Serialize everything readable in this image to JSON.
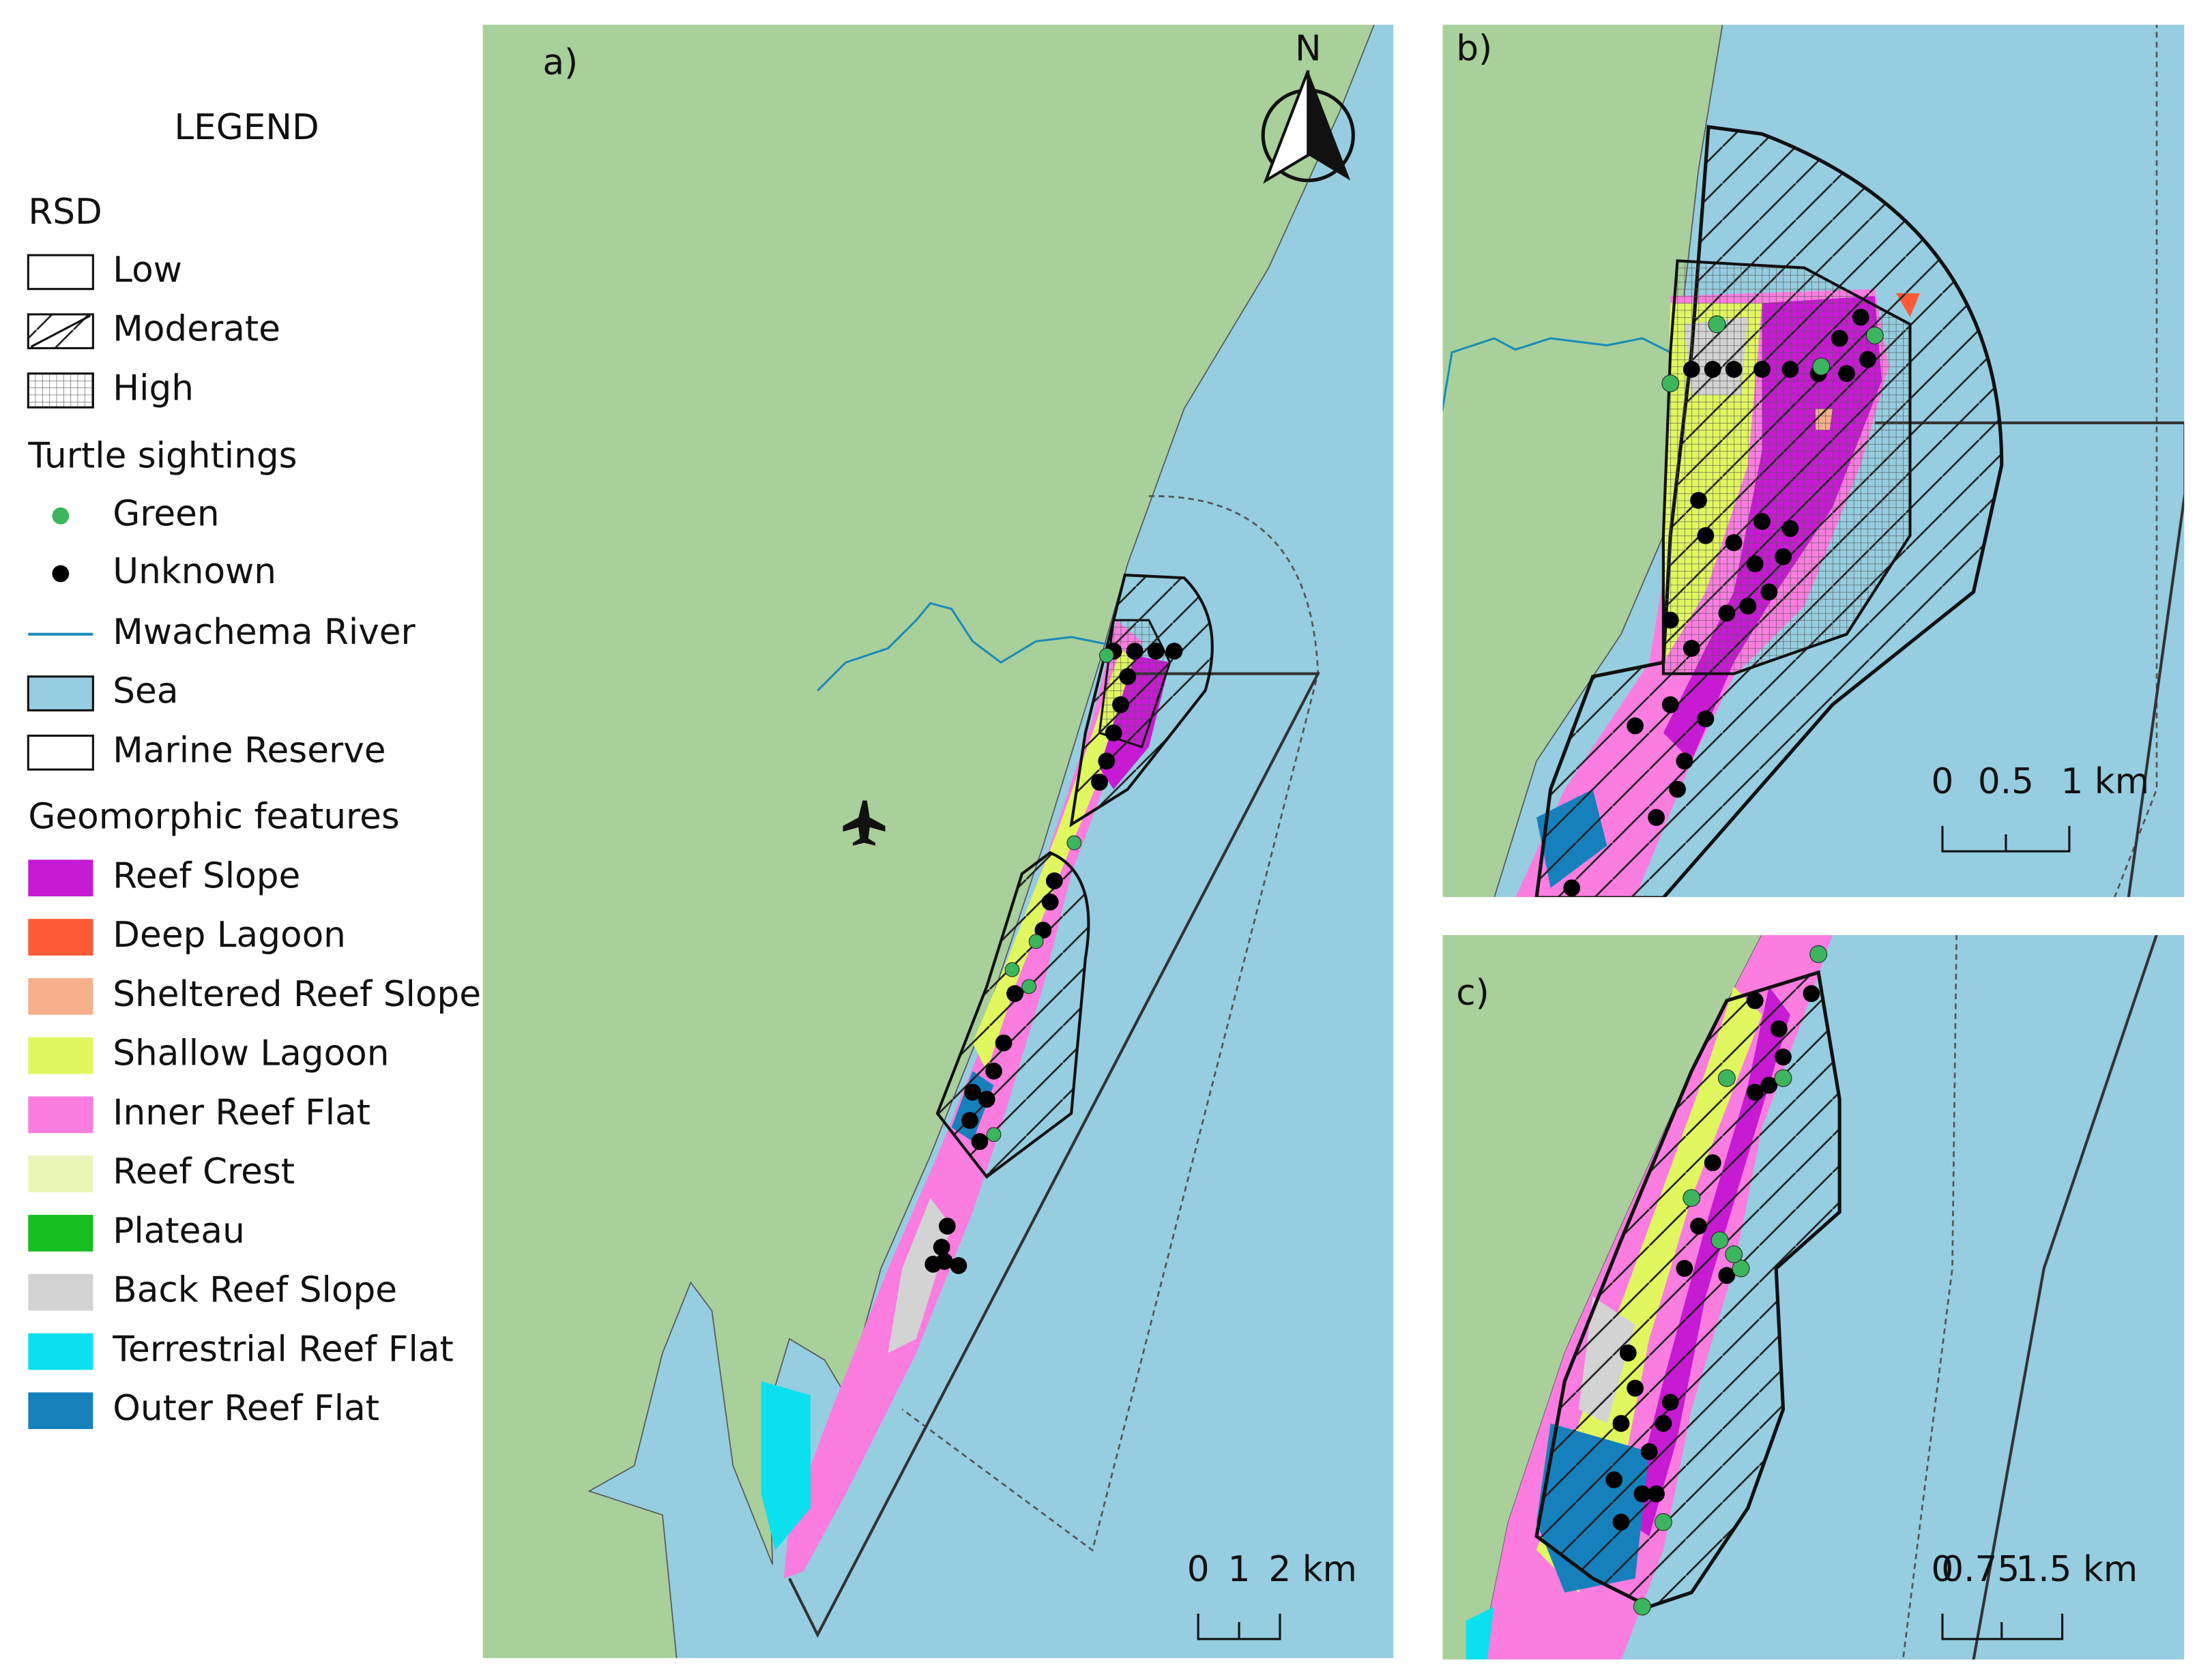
{
  "legend": {
    "title": "LEGEND",
    "rsd": {
      "heading": "RSD",
      "items": [
        "Low",
        "Moderate",
        "High"
      ]
    },
    "turtle_sightings": {
      "heading": "Turtle sightings",
      "items": [
        {
          "label": "Green",
          "color": "#3cb55e"
        },
        {
          "label": "Unknown",
          "color": "#000000"
        }
      ]
    },
    "layers": [
      "Mwachema River",
      "Sea",
      "Marine Reserve"
    ],
    "geomorphic_features": {
      "heading": "Geomorphic features",
      "items": [
        {
          "label": "Reef Slope",
          "color": "#c71ad3"
        },
        {
          "label": "Deep Lagoon",
          "color": "#ff5a36"
        },
        {
          "label": "Sheltered Reef Slope",
          "color": "#f8b08c"
        },
        {
          "label": "Shallow Lagoon",
          "color": "#e1f760"
        },
        {
          "label": "Inner Reef Flat",
          "color": "#fb7de0"
        },
        {
          "label": "Reef Crest",
          "color": "#eaf5b8"
        },
        {
          "label": "Plateau",
          "color": "#15bf20"
        },
        {
          "label": "Back Reef Slope",
          "color": "#d3d3d3"
        },
        {
          "label": "Terrestrial Reef Flat",
          "color": "#0be0ee"
        },
        {
          "label": "Outer Reef Flat",
          "color": "#1680bd"
        }
      ]
    }
  },
  "panels": [
    {
      "label": "a)",
      "north": "N",
      "scale_bar": [
        "0",
        "1",
        "2 km"
      ]
    },
    {
      "label": "b)",
      "scale_bar": [
        "0",
        "0.5",
        "1 km"
      ]
    },
    {
      "label": "c)",
      "scale_bar": [
        "0",
        "0.75",
        "1.5 km"
      ]
    }
  ]
}
